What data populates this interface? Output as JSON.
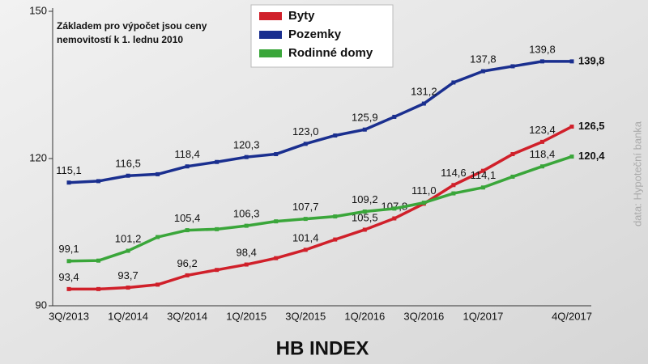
{
  "chart_data": {
    "type": "line",
    "title": "HB INDEX",
    "annotation": [
      "Základem pro výpočet jsou ceny",
      "nemovitostí k 1. lednu 2010"
    ],
    "source": "data: Hypoteční banka",
    "categories": [
      "3Q/2013",
      null,
      "1Q/2014",
      null,
      "3Q/2014",
      null,
      "1Q/2015",
      null,
      "3Q/2015",
      null,
      "1Q/2016",
      null,
      "3Q/2016",
      null,
      "1Q/2017",
      null,
      null,
      "4Q/2017"
    ],
    "ylim": [
      90,
      150
    ],
    "yticks": [
      90,
      120,
      150
    ],
    "grid": false,
    "legend": "top",
    "series": [
      {
        "name": "Byty",
        "color": "#d0202a",
        "values": [
          93.4,
          93.4,
          93.7,
          94.3,
          96.2,
          97.3,
          98.4,
          99.7,
          101.4,
          103.5,
          105.5,
          107.8,
          110.8,
          114.6,
          117.5,
          120.9,
          123.4,
          126.5
        ],
        "value_labels": [
          "93,4",
          null,
          "93,7",
          null,
          "96,2",
          null,
          "98,4",
          null,
          "101,4",
          null,
          "105,5",
          "107,8",
          null,
          "114,6",
          null,
          null,
          "123,4",
          "126,5"
        ]
      },
      {
        "name": "Pozemky",
        "color": "#1a2f8f",
        "values": [
          115.1,
          115.4,
          116.5,
          116.8,
          118.4,
          119.3,
          120.3,
          120.9,
          123.0,
          124.7,
          125.9,
          128.5,
          131.2,
          135.5,
          137.8,
          138.8,
          139.8,
          139.8
        ],
        "value_labels": [
          "115,1",
          null,
          "116,5",
          null,
          "118,4",
          null,
          "120,3",
          null,
          "123,0",
          null,
          "125,9",
          null,
          "131,2",
          null,
          "137,8",
          null,
          "139,8",
          "139,8"
        ]
      },
      {
        "name": "Rodinné domy",
        "color": "#3aa63a",
        "values": [
          99.1,
          99.2,
          101.2,
          104.0,
          105.4,
          105.6,
          106.3,
          107.2,
          107.7,
          108.2,
          109.2,
          109.8,
          111.0,
          112.9,
          114.1,
          116.3,
          118.4,
          120.4
        ],
        "value_labels": [
          "99,1",
          null,
          "101,2",
          null,
          "105,4",
          null,
          "106,3",
          null,
          "107,7",
          null,
          "109,2",
          null,
          "111,0",
          null,
          "114,1",
          null,
          "118,4",
          "120,4"
        ]
      }
    ]
  }
}
